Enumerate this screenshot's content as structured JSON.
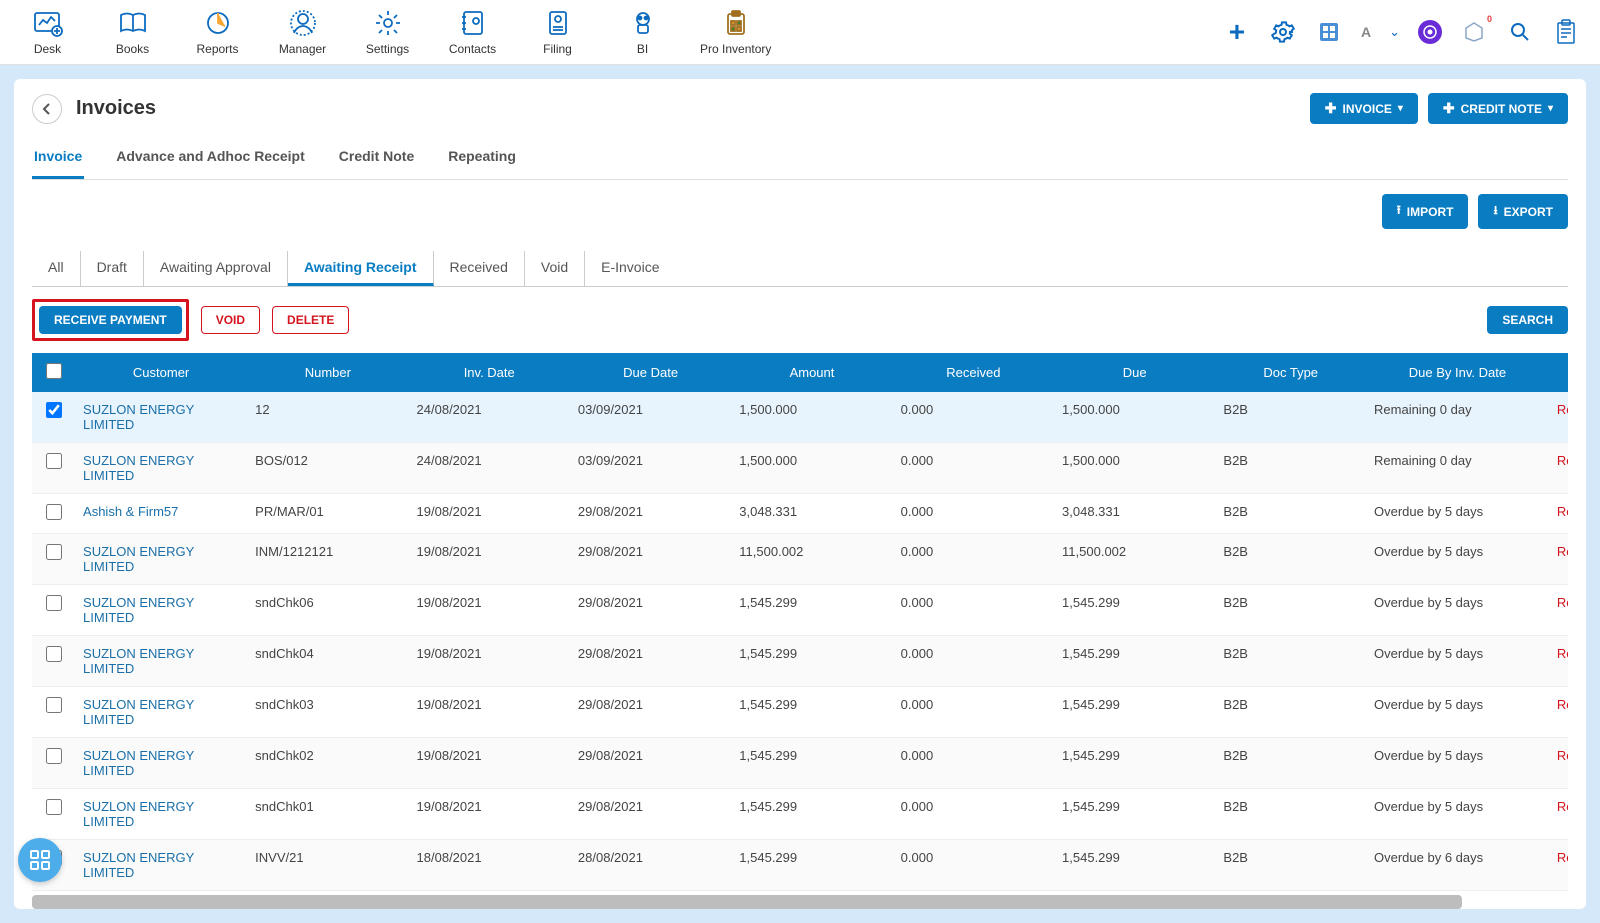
{
  "nav": [
    {
      "label": "Desk"
    },
    {
      "label": "Books"
    },
    {
      "label": "Reports"
    },
    {
      "label": "Manager"
    },
    {
      "label": "Settings"
    },
    {
      "label": "Contacts"
    },
    {
      "label": "Filing"
    },
    {
      "label": "BI"
    },
    {
      "label": "Pro Inventory"
    }
  ],
  "topbar": {
    "avatar": "A",
    "notif": "0"
  },
  "page": {
    "title": "Invoices"
  },
  "headerActions": {
    "invoice": "INVOICE",
    "creditNote": "CREDIT NOTE"
  },
  "mainTabs": [
    {
      "label": "Invoice",
      "active": true
    },
    {
      "label": "Advance and Adhoc Receipt",
      "active": false
    },
    {
      "label": "Credit Note",
      "active": false
    },
    {
      "label": "Repeating",
      "active": false
    }
  ],
  "ioButtons": {
    "import": "IMPORT",
    "export": "EXPORT"
  },
  "statusTabs": [
    {
      "label": "All",
      "active": false
    },
    {
      "label": "Draft",
      "active": false
    },
    {
      "label": "Awaiting Approval",
      "active": false
    },
    {
      "label": "Awaiting Receipt",
      "active": true
    },
    {
      "label": "Received",
      "active": false
    },
    {
      "label": "Void",
      "active": false
    },
    {
      "label": "E-Invoice",
      "active": false
    }
  ],
  "actions": {
    "receive": "RECEIVE PAYMENT",
    "void": "VOID",
    "delete": "DELETE",
    "search": "SEARCH"
  },
  "columns": [
    "Customer",
    "Number",
    "Inv. Date",
    "Due Date",
    "Amount",
    "Received",
    "Due",
    "Doc Type",
    "Due By Inv. Date"
  ],
  "rows": [
    {
      "checked": true,
      "customer": "SUZLON ENERGY LIMITED",
      "number": "12",
      "invDate": "24/08/2021",
      "dueDate": "03/09/2021",
      "amount": "1,500.000",
      "received": "0.000",
      "due": "1,500.000",
      "docType": "B2B",
      "dueBy": "Remaining 0 day",
      "dueClass": "remaining",
      "ext": "Re"
    },
    {
      "checked": false,
      "customer": "SUZLON ENERGY LIMITED",
      "number": "BOS/012",
      "invDate": "24/08/2021",
      "dueDate": "03/09/2021",
      "amount": "1,500.000",
      "received": "0.000",
      "due": "1,500.000",
      "docType": "B2B",
      "dueBy": "Remaining 0 day",
      "dueClass": "remaining",
      "ext": "Re"
    },
    {
      "checked": false,
      "customer": "Ashish & Firm57",
      "number": "PR/MAR/01",
      "invDate": "19/08/2021",
      "dueDate": "29/08/2021",
      "amount": "3,048.331",
      "received": "0.000",
      "due": "3,048.331",
      "docType": "B2B",
      "dueBy": "Overdue by 5 days",
      "dueClass": "overdue",
      "ext": "Re"
    },
    {
      "checked": false,
      "customer": "SUZLON ENERGY LIMITED",
      "number": "INM/1212121",
      "invDate": "19/08/2021",
      "dueDate": "29/08/2021",
      "amount": "11,500.002",
      "received": "0.000",
      "due": "11,500.002",
      "docType": "B2B",
      "dueBy": "Overdue by 5 days",
      "dueClass": "overdue",
      "ext": "Re"
    },
    {
      "checked": false,
      "customer": "SUZLON ENERGY LIMITED",
      "number": "sndChk06",
      "invDate": "19/08/2021",
      "dueDate": "29/08/2021",
      "amount": "1,545.299",
      "received": "0.000",
      "due": "1,545.299",
      "docType": "B2B",
      "dueBy": "Overdue by 5 days",
      "dueClass": "overdue",
      "ext": "Re"
    },
    {
      "checked": false,
      "customer": "SUZLON ENERGY LIMITED",
      "number": "sndChk04",
      "invDate": "19/08/2021",
      "dueDate": "29/08/2021",
      "amount": "1,545.299",
      "received": "0.000",
      "due": "1,545.299",
      "docType": "B2B",
      "dueBy": "Overdue by 5 days",
      "dueClass": "overdue",
      "ext": "Re"
    },
    {
      "checked": false,
      "customer": "SUZLON ENERGY LIMITED",
      "number": "sndChk03",
      "invDate": "19/08/2021",
      "dueDate": "29/08/2021",
      "amount": "1,545.299",
      "received": "0.000",
      "due": "1,545.299",
      "docType": "B2B",
      "dueBy": "Overdue by 5 days",
      "dueClass": "overdue",
      "ext": "Re"
    },
    {
      "checked": false,
      "customer": "SUZLON ENERGY LIMITED",
      "number": "sndChk02",
      "invDate": "19/08/2021",
      "dueDate": "29/08/2021",
      "amount": "1,545.299",
      "received": "0.000",
      "due": "1,545.299",
      "docType": "B2B",
      "dueBy": "Overdue by 5 days",
      "dueClass": "overdue",
      "ext": "Re"
    },
    {
      "checked": false,
      "customer": "SUZLON ENERGY LIMITED",
      "number": "sndChk01",
      "invDate": "19/08/2021",
      "dueDate": "29/08/2021",
      "amount": "1,545.299",
      "received": "0.000",
      "due": "1,545.299",
      "docType": "B2B",
      "dueBy": "Overdue by 5 days",
      "dueClass": "overdue",
      "ext": "Re"
    },
    {
      "checked": false,
      "customer": "SUZLON ENERGY LIMITED",
      "number": "INVV/21",
      "invDate": "18/08/2021",
      "dueDate": "28/08/2021",
      "amount": "1,545.299",
      "received": "0.000",
      "due": "1,545.299",
      "docType": "B2B",
      "dueBy": "Overdue by 6 days",
      "dueClass": "overdue",
      "ext": "Re"
    }
  ]
}
